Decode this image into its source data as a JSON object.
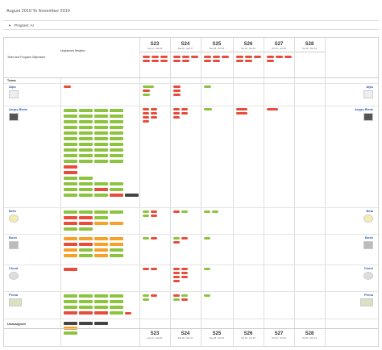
{
  "page": {
    "title": "August 2019 To November 2019"
  },
  "program": {
    "label": "Program: AI"
  },
  "header": {
    "team_col": "Team and Program Objectives",
    "unplanned_col": "Unplanned Iteration",
    "teams_label": "Teams"
  },
  "sprints": [
    {
      "name": "S23",
      "dates": "Aug 21 - Sep 03"
    },
    {
      "name": "S24",
      "dates": "Sep 04 - Sep 17"
    },
    {
      "name": "S25",
      "dates": "Sep 18 - Oct 01"
    },
    {
      "name": "S26",
      "dates": "Oct 02 - Oct 15"
    },
    {
      "name": "S27",
      "dates": "Oct 16 - Oct 29"
    },
    {
      "name": "S28",
      "dates": "Oct 30 - Nov 12"
    }
  ],
  "teams": [
    {
      "name": "Alps"
    },
    {
      "name": "Angry Birds"
    },
    {
      "name": "Beta"
    },
    {
      "name": "Bush"
    },
    {
      "name": "Cloud"
    },
    {
      "name": "Prima"
    },
    {
      "name": "Unassigned"
    }
  ],
  "colors": {
    "done": "#8cc43f",
    "risk": "#e74c3c",
    "warn": "#f5a12a",
    "blocked": "#444444",
    "team_link": "#2a5db0"
  }
}
